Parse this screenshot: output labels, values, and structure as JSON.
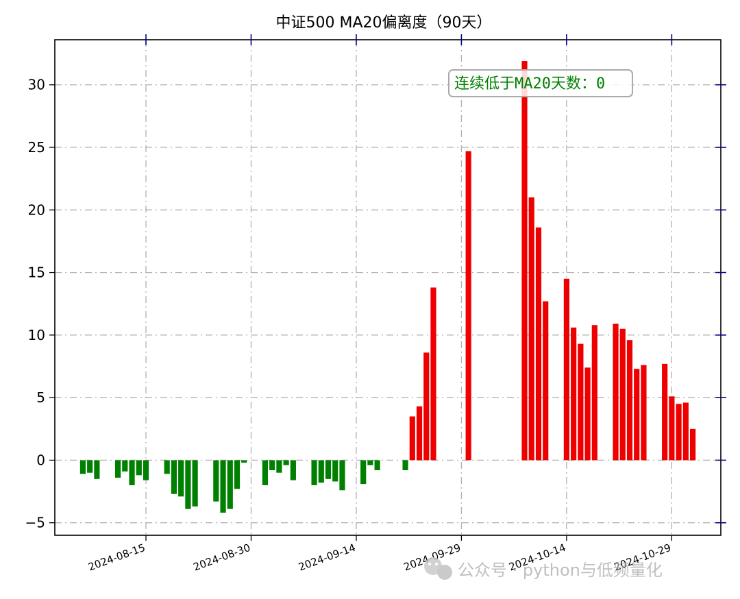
{
  "chart_data": {
    "type": "bar",
    "title": "中证500 MA20偏离度（90天）",
    "xlabel": "",
    "ylabel": "",
    "ylim": [
      -6,
      33.6
    ],
    "yticks": [
      -5,
      0,
      5,
      10,
      15,
      20,
      25,
      30
    ],
    "ytick_labels": [
      "−5",
      "0",
      "5",
      "10",
      "15",
      "20",
      "25",
      "30"
    ],
    "xlim": [
      "2024-08-02",
      "2024-11-05"
    ],
    "xticks": [
      "2024-08-15",
      "2024-08-30",
      "2024-09-14",
      "2024-09-29",
      "2024-10-14",
      "2024-10-29"
    ],
    "grid": true,
    "colors": {
      "positive": "#ee0000",
      "negative": "#008000",
      "tick_marks": "#00008b",
      "grid": "#b0b0b0"
    },
    "dates": [
      "2024-08-06",
      "2024-08-07",
      "2024-08-08",
      "2024-08-11",
      "2024-08-12",
      "2024-08-13",
      "2024-08-14",
      "2024-08-15",
      "2024-08-18",
      "2024-08-19",
      "2024-08-20",
      "2024-08-21",
      "2024-08-22",
      "2024-08-25",
      "2024-08-26",
      "2024-08-27",
      "2024-08-28",
      "2024-08-29",
      "2024-09-01",
      "2024-09-02",
      "2024-09-03",
      "2024-09-04",
      "2024-09-05",
      "2024-09-08",
      "2024-09-09",
      "2024-09-10",
      "2024-09-11",
      "2024-09-12",
      "2024-09-15",
      "2024-09-16",
      "2024-09-17",
      "2024-09-21",
      "2024-09-22",
      "2024-09-23",
      "2024-09-24",
      "2024-09-25",
      "2024-09-30",
      "2024-10-08",
      "2024-10-09",
      "2024-10-10",
      "2024-10-11",
      "2024-10-14",
      "2024-10-15",
      "2024-10-16",
      "2024-10-17",
      "2024-10-18",
      "2024-10-21",
      "2024-10-22",
      "2024-10-23",
      "2024-10-24",
      "2024-10-25",
      "2024-10-28",
      "2024-10-29",
      "2024-10-30",
      "2024-10-31",
      "2024-11-01"
    ],
    "values": [
      -1.1,
      -1.0,
      -1.5,
      -1.4,
      -0.9,
      -2.0,
      -1.2,
      -1.6,
      -1.1,
      -2.7,
      -2.9,
      -3.9,
      -3.7,
      -3.3,
      -4.2,
      -3.9,
      -2.3,
      -0.2,
      -2.0,
      -0.8,
      -1.0,
      -0.4,
      -1.6,
      -2.0,
      -1.8,
      -1.5,
      -1.7,
      -2.4,
      -1.9,
      -0.4,
      -0.8,
      -0.8,
      3.5,
      4.3,
      8.6,
      13.8,
      24.7,
      31.9,
      21.0,
      18.6,
      12.7,
      14.5,
      10.6,
      9.3,
      7.4,
      10.8,
      10.9,
      10.5,
      9.6,
      7.3,
      7.6,
      7.7,
      5.1,
      4.5,
      4.6,
      2.5
    ],
    "annotation": "连续低于MA20天数：0"
  },
  "watermark": {
    "text": "公众号 · python与低频量化",
    "icon": "wechat-icon"
  }
}
